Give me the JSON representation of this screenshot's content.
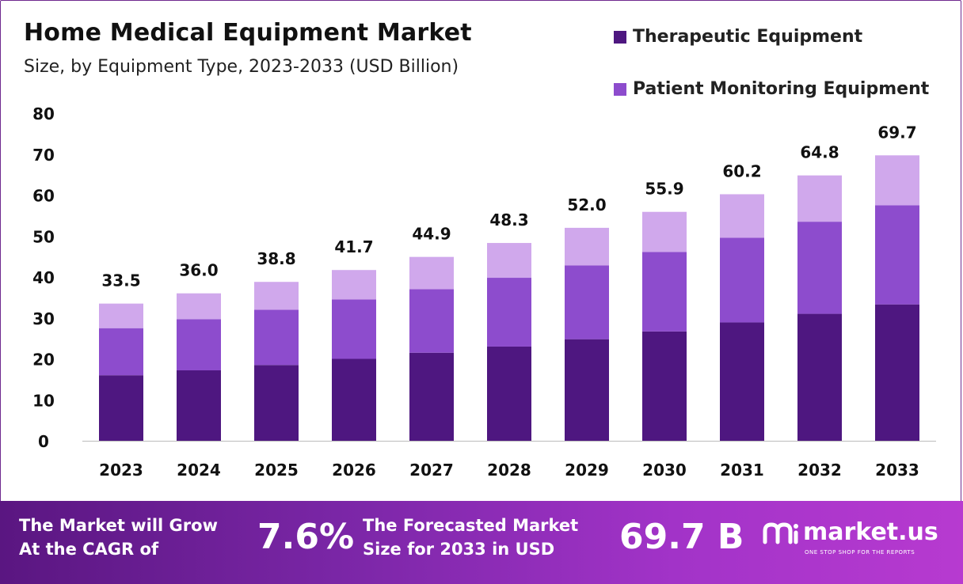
{
  "chart_data": {
    "type": "bar",
    "stacked": true,
    "title": "Home Medical Equipment Market",
    "subtitle": "Size, by Equipment Type, 2023-2033 (USD Billion)",
    "categories": [
      "2023",
      "2024",
      "2025",
      "2026",
      "2027",
      "2028",
      "2029",
      "2030",
      "2031",
      "2032",
      "2033"
    ],
    "series": [
      {
        "name": "Therapeutic Equipment",
        "color": "#4e1780",
        "values": [
          16.0,
          17.2,
          18.5,
          20.0,
          21.5,
          23.0,
          24.8,
          26.7,
          28.9,
          31.0,
          33.3
        ]
      },
      {
        "name": "Patient Monitoring Equipment",
        "color": "#8d4ccd",
        "values": [
          11.5,
          12.5,
          13.5,
          14.5,
          15.5,
          16.8,
          18.0,
          19.4,
          20.7,
          22.5,
          24.2
        ]
      },
      {
        "name": "",
        "color": "#d0a8ec",
        "values": [
          6.0,
          6.3,
          6.8,
          7.2,
          7.9,
          8.5,
          9.2,
          9.8,
          10.6,
          11.3,
          12.2
        ]
      }
    ],
    "totals": [
      "33.5",
      "36.0",
      "38.8",
      "41.7",
      "44.9",
      "48.3",
      "52.0",
      "55.9",
      "60.2",
      "64.8",
      "69.7"
    ],
    "ylim": [
      0,
      80
    ],
    "yticks": [
      "0",
      "10",
      "20",
      "30",
      "40",
      "50",
      "60",
      "70",
      "80"
    ],
    "grid": false,
    "legend_position": "top-right"
  },
  "footer": {
    "cagr_line1": "The Market will Grow",
    "cagr_line2": "At the CAGR of",
    "cagr_value": "7.6%",
    "forecast_line1": "The Forecasted Market",
    "forecast_line2": "Size for 2033 in USD",
    "forecast_value": "69.7 B",
    "brand_name": "market.us",
    "brand_tagline": "ONE STOP SHOP FOR THE REPORTS"
  }
}
